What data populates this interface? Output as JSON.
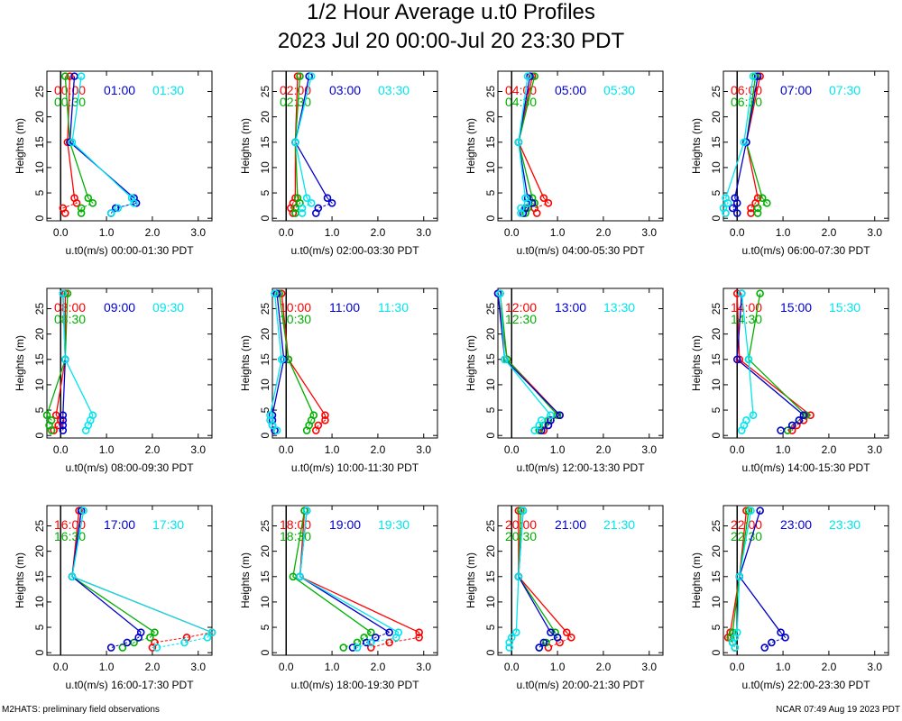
{
  "header": {
    "title": "1/2 Hour Average u.t0 Profiles",
    "subtitle": "2023 Jul 20 00:00-Jul 20 23:30 PDT"
  },
  "footer": {
    "left": "M2HATS: preliminary field observations",
    "right": "NCAR 07:49 Aug 19 2023 PDT"
  },
  "colors": {
    "s1": "#ff0000",
    "s2": "#00b000",
    "s3": "#0000cc",
    "s4": "#00e5ee",
    "axis": "#000000"
  },
  "chart_data": {
    "type": "line",
    "ylabel": "Heights (m)",
    "xlim": [
      -0.3,
      3.3
    ],
    "ylim": [
      -0.5,
      29
    ],
    "xticks": [
      0.0,
      1.0,
      2.0,
      3.0
    ],
    "xtick_labels": [
      "0.0",
      "1.0",
      "2.0",
      "3.0"
    ],
    "yticks": [
      0,
      5,
      10,
      15,
      20,
      25
    ],
    "yticks_labels": [
      "0",
      "5",
      "10",
      "15",
      "20",
      "25"
    ],
    "heights": [
      28,
      15,
      4,
      3,
      2,
      1
    ],
    "panels": [
      {
        "xlabel": "u.t0(m/s) 00:00-01:30 PDT",
        "labels": [
          "00:00",
          "00:30",
          "01:00",
          "01:30"
        ],
        "series": [
          [
            0.2,
            0.15,
            0.3,
            0.35,
            0.05,
            0.1
          ],
          [
            0.1,
            0.2,
            0.6,
            0.7,
            0.45,
            0.45
          ],
          [
            0.3,
            0.2,
            1.6,
            1.65,
            1.2,
            1.1
          ],
          [
            0.45,
            0.25,
            1.55,
            1.6,
            1.25,
            1.1
          ]
        ]
      },
      {
        "xlabel": "u.t0(m/s) 02:00-03:30 PDT",
        "labels": [
          "02:00",
          "02:30",
          "03:00",
          "03:30"
        ],
        "series": [
          [
            0.25,
            0.2,
            0.2,
            0.15,
            0.1,
            0.15
          ],
          [
            0.3,
            0.2,
            0.25,
            0.3,
            0.2,
            0.2
          ],
          [
            0.5,
            0.2,
            0.9,
            1.0,
            0.7,
            0.65
          ],
          [
            0.55,
            0.2,
            0.45,
            0.55,
            0.35,
            0.35
          ]
        ]
      },
      {
        "xlabel": "u.t0(m/s) 04:00-05:30 PDT",
        "labels": [
          "04:00",
          "04:30",
          "05:00",
          "05:30"
        ],
        "series": [
          [
            0.45,
            0.15,
            0.7,
            0.8,
            0.5,
            0.55
          ],
          [
            0.5,
            0.15,
            0.45,
            0.5,
            0.35,
            0.3
          ],
          [
            0.4,
            0.15,
            0.35,
            0.45,
            0.3,
            0.25
          ],
          [
            0.35,
            0.15,
            0.3,
            0.35,
            0.2,
            0.2
          ]
        ]
      },
      {
        "xlabel": "u.t0(m/s) 06:00-07:30 PDT",
        "labels": [
          "06:00",
          "06:30",
          "07:00",
          "07:30"
        ],
        "series": [
          [
            0.5,
            0.2,
            0.45,
            0.4,
            0.3,
            0.3
          ],
          [
            0.4,
            0.2,
            0.55,
            0.65,
            0.45,
            0.45
          ],
          [
            0.45,
            0.2,
            -0.05,
            0.0,
            -0.1,
            0.0
          ],
          [
            0.35,
            0.15,
            -0.25,
            -0.2,
            -0.3,
            -0.25
          ]
        ]
      },
      {
        "xlabel": "u.t0(m/s) 08:00-09:30 PDT",
        "labels": [
          "08:00",
          "08:30",
          "09:00",
          "09:30"
        ],
        "series": [
          [
            0.1,
            0.1,
            -0.1,
            0.0,
            -0.05,
            -0.15
          ],
          [
            0.15,
            0.1,
            -0.3,
            -0.2,
            -0.25,
            -0.2
          ],
          [
            0.05,
            0.1,
            0.05,
            0.05,
            0.05,
            0.05
          ],
          [
            0.05,
            0.1,
            0.7,
            0.65,
            0.6,
            0.55
          ]
        ]
      },
      {
        "xlabel": "u.t0(m/s) 10:00-11:30 PDT",
        "labels": [
          "10:00",
          "10:30",
          "11:00",
          "11:30"
        ],
        "series": [
          [
            -0.1,
            0.05,
            0.85,
            0.85,
            0.7,
            0.65
          ],
          [
            -0.15,
            0.05,
            0.6,
            0.55,
            0.5,
            0.45
          ],
          [
            -0.2,
            -0.05,
            -0.3,
            -0.3,
            -0.3,
            -0.25
          ],
          [
            -0.25,
            -0.1,
            -0.35,
            -0.35,
            -0.3,
            -0.2
          ]
        ]
      },
      {
        "xlabel": "u.t0(m/s) 12:00-13:30 PDT",
        "labels": [
          "12:00",
          "12:30",
          "13:00",
          "13:30"
        ],
        "series": [
          [
            -0.3,
            -0.1,
            1.05,
            0.85,
            0.8,
            0.7
          ],
          [
            -0.25,
            -0.1,
            1.0,
            0.8,
            0.7,
            0.6
          ],
          [
            -0.3,
            -0.15,
            1.05,
            0.85,
            0.8,
            0.65
          ],
          [
            -0.25,
            -0.15,
            0.85,
            0.65,
            0.6,
            0.5
          ]
        ]
      },
      {
        "xlabel": "u.t0(m/s) 14:00-15:30 PDT",
        "labels": [
          "14:00",
          "14:30",
          "15:00",
          "15:30"
        ],
        "series": [
          [
            0.0,
            0.05,
            1.6,
            1.45,
            1.3,
            1.2
          ],
          [
            0.5,
            0.25,
            1.5,
            1.35,
            1.2,
            1.1
          ],
          [
            0.1,
            0.0,
            1.45,
            1.35,
            1.2,
            0.95
          ],
          [
            0.1,
            0.25,
            0.35,
            0.2,
            0.15,
            0.1
          ]
        ]
      },
      {
        "xlabel": "u.t0(m/s) 16:00-17:30 PDT",
        "labels": [
          "16:00",
          "16:30",
          "17:00",
          "17:30"
        ],
        "series": [
          [
            0.4,
            0.25,
            3.3,
            2.75,
            2.05,
            2.0
          ],
          [
            0.45,
            0.25,
            2.05,
            1.95,
            1.6,
            1.35
          ],
          [
            0.45,
            0.25,
            1.75,
            1.7,
            1.45,
            1.1
          ],
          [
            0.5,
            0.25,
            3.3,
            3.2,
            2.7,
            2.1
          ]
        ]
      },
      {
        "xlabel": "u.t0(m/s) 18:00-19:30 PDT",
        "labels": [
          "18:00",
          "18:30",
          "19:00",
          "19:30"
        ],
        "series": [
          [
            0.4,
            0.3,
            2.9,
            2.9,
            2.25,
            1.85
          ],
          [
            0.4,
            0.15,
            1.85,
            1.7,
            1.55,
            1.25
          ],
          [
            0.45,
            0.3,
            2.25,
            1.95,
            1.75,
            1.45
          ],
          [
            0.45,
            0.3,
            2.45,
            2.4,
            1.85,
            1.55
          ]
        ]
      },
      {
        "xlabel": "u.t0(m/s) 20:00-21:30 PDT",
        "labels": [
          "20:00",
          "20:30",
          "21:00",
          "21:30"
        ],
        "series": [
          [
            0.15,
            0.15,
            1.2,
            1.3,
            1.05,
            0.8
          ],
          [
            0.2,
            0.15,
            0.95,
            1.0,
            0.75,
            0.6
          ],
          [
            0.25,
            0.15,
            0.85,
            1.0,
            0.7,
            0.6
          ],
          [
            0.25,
            0.15,
            0.1,
            0.0,
            -0.05,
            -0.05
          ]
        ]
      },
      {
        "xlabel": "u.t0(m/s) 22:00-23:30 PDT",
        "labels": [
          "22:00",
          "22:30",
          "23:00",
          "23:30"
        ],
        "series": [
          [
            0.2,
            0.05,
            -0.15,
            -0.2,
            -0.1,
            -0.05
          ],
          [
            0.25,
            0.05,
            -0.1,
            -0.15,
            -0.1,
            -0.05
          ],
          [
            0.5,
            0.05,
            0.95,
            1.05,
            0.75,
            0.6
          ],
          [
            0.3,
            0.05,
            0.0,
            -0.05,
            -0.1,
            -0.05
          ]
        ]
      }
    ]
  }
}
